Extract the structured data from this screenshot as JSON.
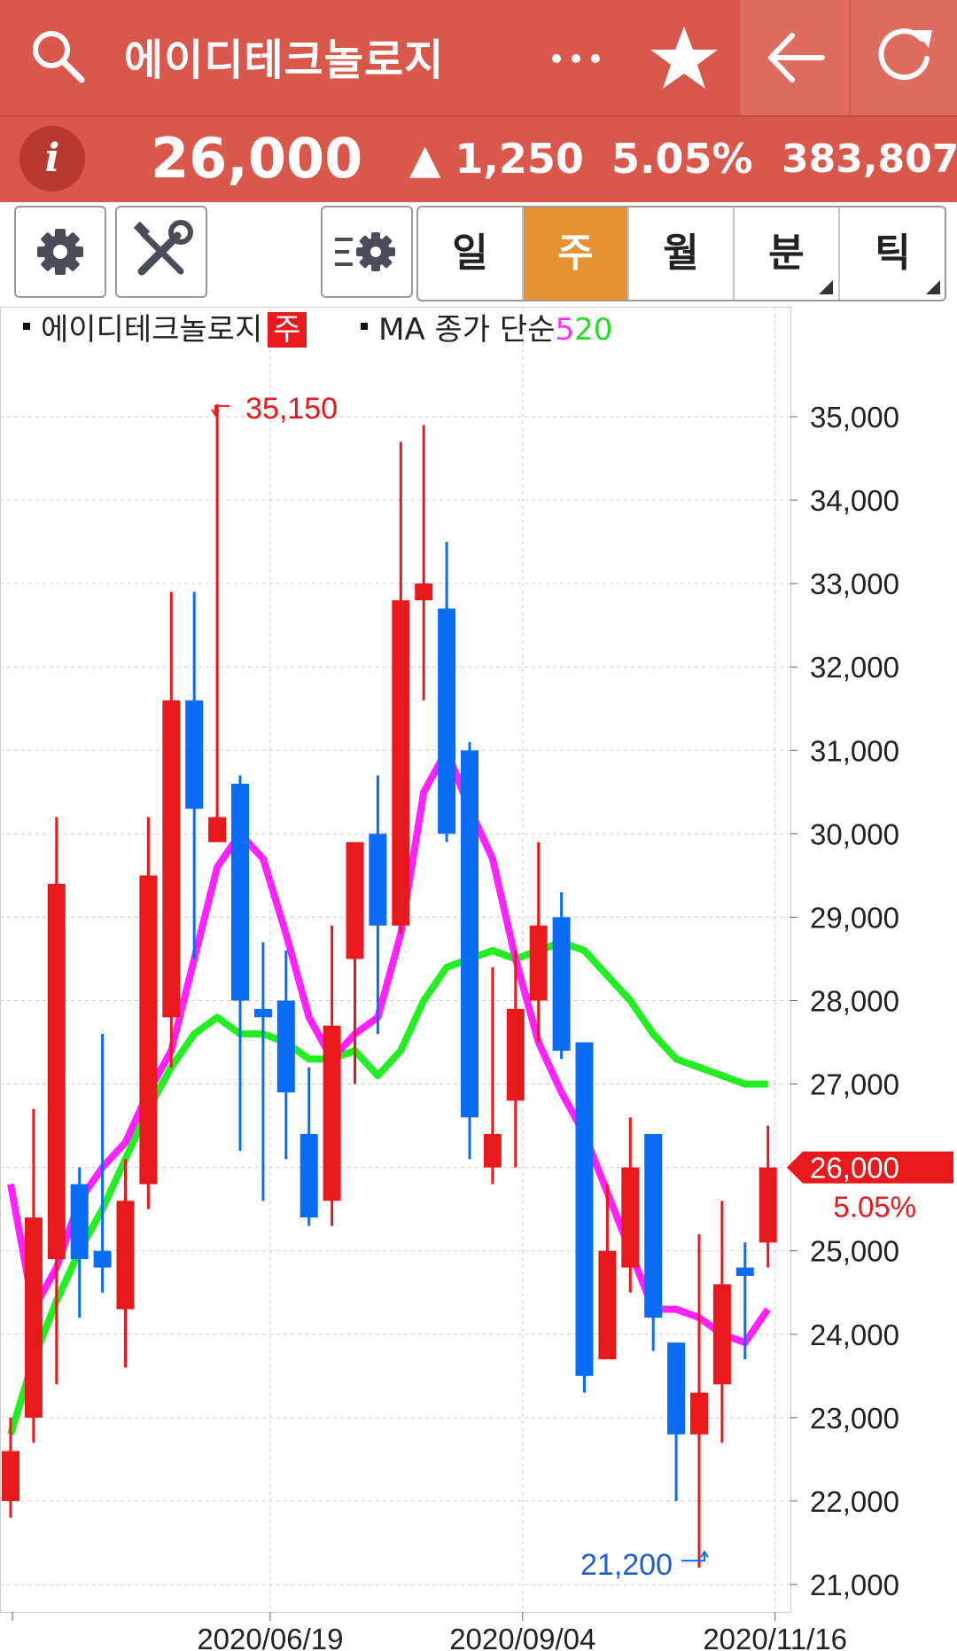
{
  "header": {
    "title": "에이디테크놀로지",
    "icons": {
      "search": "search-icon",
      "more": "more-icon",
      "favorite": "star-icon",
      "back": "back-arrow-icon",
      "refresh": "refresh-icon"
    }
  },
  "quote": {
    "info_label": "i",
    "price": "26,000",
    "change": "▲ 1,250",
    "percent": "5.05%",
    "volume": "383,807"
  },
  "toolbar": {
    "icons": {
      "settings": "gear-icon",
      "tools": "tools-icon",
      "indicator_settings": "indicator-settings-icon"
    },
    "periods": [
      {
        "label": "일",
        "active": false,
        "corner": false
      },
      {
        "label": "주",
        "active": true,
        "corner": false
      },
      {
        "label": "월",
        "active": false,
        "corner": false
      },
      {
        "label": "분",
        "active": false,
        "corner": true
      },
      {
        "label": "틱",
        "active": false,
        "corner": true
      }
    ]
  },
  "legend": {
    "name": "에이디테크놀로지",
    "badge": "주",
    "ma_label": "MA 종가 단순",
    "ma5": "5",
    "ma20": "20"
  },
  "colors": {
    "up": "#e8191c",
    "down": "#0a6cf5",
    "ma5": "#ff22ff",
    "ma20": "#22ee22",
    "accent": "#d9584b",
    "active_period": "#e49232"
  },
  "chart_data": {
    "type": "candlestick",
    "ylim": [
      20700,
      36400
    ],
    "yticks": [
      "35,000",
      "34,000",
      "33,000",
      "32,000",
      "31,000",
      "30,000",
      "29,000",
      "28,000",
      "27,000",
      "26,000",
      "25,000",
      "24,000",
      "23,000",
      "22,000",
      "21,000"
    ],
    "ytick_values": [
      35000,
      34000,
      33000,
      32000,
      31000,
      30000,
      29000,
      28000,
      27000,
      26000,
      25000,
      24000,
      23000,
      22000,
      21000
    ],
    "xtick_labels": [
      "2020/06/19",
      "2020/09/04",
      "2020/11/16"
    ],
    "xtick_index": [
      11,
      22,
      33
    ],
    "high_label": "35,150",
    "high_index": 9,
    "high_value": 35150,
    "low_label": "21,200",
    "low_index": 30,
    "low_value": 21200,
    "current_label": "26,000",
    "current_value": 26000,
    "current_pct": "5.05%",
    "candles": [
      {
        "o": 22000,
        "h": 23000,
        "l": 21800,
        "c": 22600
      },
      {
        "o": 23000,
        "h": 26700,
        "l": 22700,
        "c": 25400
      },
      {
        "o": 24900,
        "h": 30200,
        "l": 23400,
        "c": 29400
      },
      {
        "o": 25800,
        "h": 26000,
        "l": 24200,
        "c": 24900
      },
      {
        "o": 25000,
        "h": 27600,
        "l": 24500,
        "c": 24800
      },
      {
        "o": 24300,
        "h": 26100,
        "l": 23600,
        "c": 25600
      },
      {
        "o": 25800,
        "h": 30200,
        "l": 25500,
        "c": 29500
      },
      {
        "o": 27800,
        "h": 32900,
        "l": 27200,
        "c": 31600
      },
      {
        "o": 31600,
        "h": 32900,
        "l": 28500,
        "c": 30300
      },
      {
        "o": 29900,
        "h": 35150,
        "l": 29900,
        "c": 30200
      },
      {
        "o": 30600,
        "h": 30700,
        "l": 26200,
        "c": 28000
      },
      {
        "o": 27900,
        "h": 28700,
        "l": 25600,
        "c": 27800
      },
      {
        "o": 28000,
        "h": 28600,
        "l": 26100,
        "c": 26900
      },
      {
        "o": 26400,
        "h": 27200,
        "l": 25300,
        "c": 25400
      },
      {
        "o": 25600,
        "h": 28900,
        "l": 25300,
        "c": 27700
      },
      {
        "o": 28500,
        "h": 29900,
        "l": 27000,
        "c": 29900
      },
      {
        "o": 30000,
        "h": 30700,
        "l": 27600,
        "c": 28900
      },
      {
        "o": 28900,
        "h": 34700,
        "l": 28800,
        "c": 32800
      },
      {
        "o": 32800,
        "h": 34900,
        "l": 31600,
        "c": 33000
      },
      {
        "o": 32700,
        "h": 33500,
        "l": 29900,
        "c": 30000
      },
      {
        "o": 31000,
        "h": 31100,
        "l": 26100,
        "c": 26600
      },
      {
        "o": 26000,
        "h": 28400,
        "l": 25800,
        "c": 26400
      },
      {
        "o": 26800,
        "h": 28600,
        "l": 26000,
        "c": 27900
      },
      {
        "o": 28000,
        "h": 29900,
        "l": 27500,
        "c": 28900
      },
      {
        "o": 29000,
        "h": 29300,
        "l": 27300,
        "c": 27400
      },
      {
        "o": 27500,
        "h": 27500,
        "l": 23300,
        "c": 23500
      },
      {
        "o": 23700,
        "h": 25800,
        "l": 23700,
        "c": 25000
      },
      {
        "o": 24800,
        "h": 26600,
        "l": 24500,
        "c": 26000
      },
      {
        "o": 26400,
        "h": 26400,
        "l": 23800,
        "c": 24200
      },
      {
        "o": 23900,
        "h": 23900,
        "l": 22000,
        "c": 22800
      },
      {
        "o": 22800,
        "h": 25200,
        "l": 21200,
        "c": 23300
      },
      {
        "o": 23400,
        "h": 25600,
        "l": 22700,
        "c": 24600
      },
      {
        "o": 24800,
        "h": 25100,
        "l": 23700,
        "c": 24700
      },
      {
        "o": 25100,
        "h": 26500,
        "l": 24800,
        "c": 26000
      }
    ],
    "ma5": [
      25800,
      24300,
      24800,
      25600,
      26000,
      26300,
      26900,
      27400,
      28500,
      29600,
      30000,
      29700,
      28800,
      27800,
      27300,
      27600,
      27800,
      28800,
      30500,
      31000,
      30300,
      29700,
      28500,
      27500,
      26900,
      26400,
      25700,
      25000,
      24300,
      24300,
      24200,
      24000,
      23900,
      24300
    ],
    "ma20": [
      22800,
      23700,
      24400,
      25000,
      25500,
      26100,
      26700,
      27200,
      27600,
      27800,
      27600,
      27600,
      27500,
      27300,
      27300,
      27400,
      27100,
      27400,
      28000,
      28400,
      28500,
      28600,
      28500,
      28600,
      28700,
      28600,
      28300,
      28000,
      27600,
      27300,
      27200,
      27100,
      27000,
      27000
    ]
  }
}
